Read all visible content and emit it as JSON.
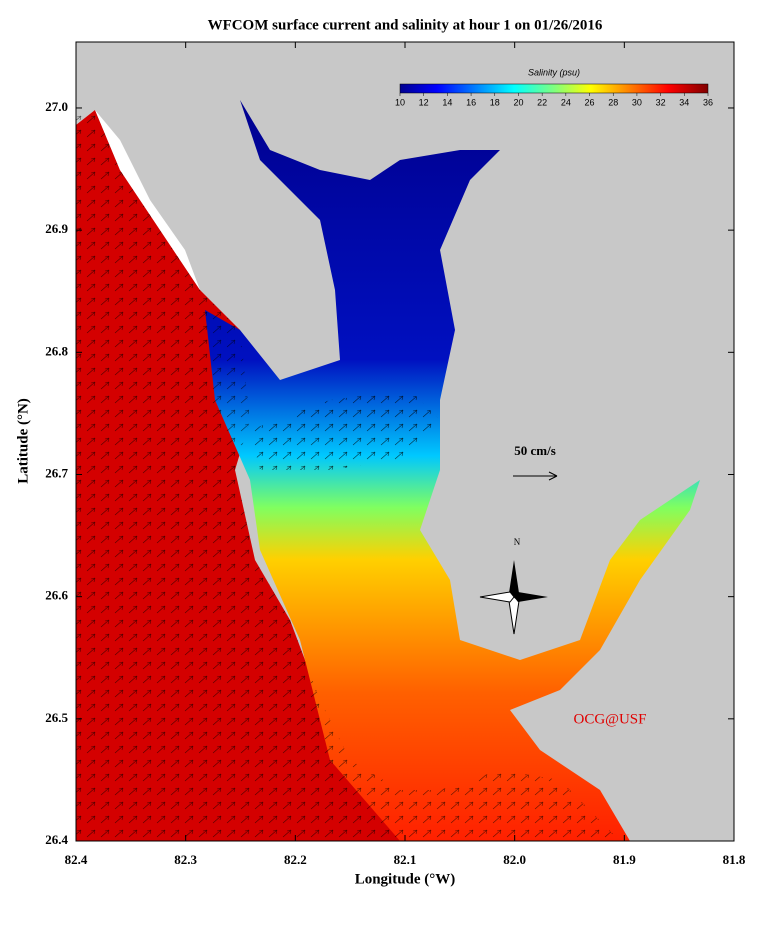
{
  "map_data": {
    "title": "WFCOM surface current and salinity at hour 1 on 01/26/2016",
    "xlabel": "Longitude (°W)",
    "ylabel": "Latitude (°N)",
    "xlim": [
      82.4,
      81.8
    ],
    "ylim": [
      26.4,
      27.054
    ],
    "xticks": [
      82.4,
      82.3,
      82.2,
      82.1,
      {
        "value": 82.0,
        "label": "82.0"
      },
      81.9,
      81.8
    ],
    "yticks": [
      26.4,
      26.5,
      26.6,
      26.7,
      26.8,
      26.9,
      {
        "value": 27.0,
        "label": "27.0"
      }
    ],
    "colorbar": {
      "label": "Salinity (psu)",
      "lim": [
        10,
        36
      ],
      "ticks": [
        10,
        12,
        14,
        16,
        18,
        20,
        22,
        24,
        26,
        28,
        30,
        32,
        34,
        36
      ]
    },
    "scale_label": "50 cm/s",
    "north_label": "N",
    "credit": "OCG@USF"
  }
}
